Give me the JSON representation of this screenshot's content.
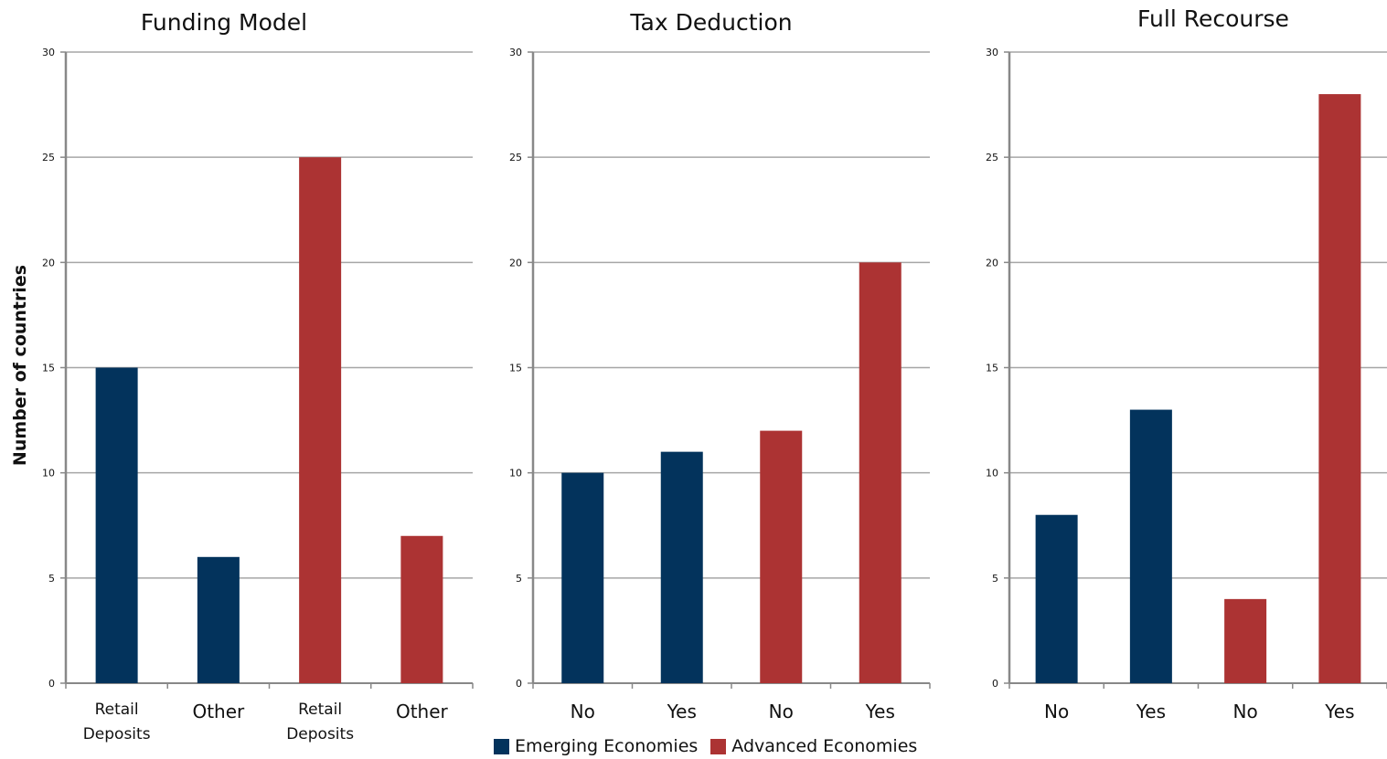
{
  "colors": {
    "emerging": "#03335c",
    "advanced": "#ac3333",
    "grid": "#a6a6a6",
    "axis": "#888888"
  },
  "legend": {
    "items": [
      {
        "label": "Emerging Economies",
        "color": "#03335c"
      },
      {
        "label": "Advanced Economies",
        "color": "#ac3333"
      }
    ],
    "placement": "bottom-center"
  },
  "ylabel": "Number of countries",
  "chart_data": [
    {
      "type": "bar",
      "title": "Funding Model",
      "categories": [
        "Retail Deposits",
        "Other",
        "Retail Deposits",
        "Other"
      ],
      "values": [
        15,
        6,
        25,
        7
      ],
      "groups": [
        "Emerging Economies",
        "Emerging Economies",
        "Advanced Economies",
        "Advanced Economies"
      ],
      "ylabel": "Number of countries",
      "ylim": [
        0,
        30
      ],
      "yticks": [
        0,
        5,
        10,
        15,
        20,
        25,
        30
      ],
      "grid": true
    },
    {
      "type": "bar",
      "title": "Tax Deduction",
      "categories": [
        "No",
        "Yes",
        "No",
        "Yes"
      ],
      "values": [
        10,
        11,
        12,
        20
      ],
      "groups": [
        "Emerging Economies",
        "Emerging Economies",
        "Advanced Economies",
        "Advanced Economies"
      ],
      "ylim": [
        0,
        30
      ],
      "yticks": [
        0,
        5,
        10,
        15,
        20,
        25,
        30
      ],
      "grid": true
    },
    {
      "type": "bar",
      "title": "Full Recourse",
      "categories": [
        "No",
        "Yes",
        "No",
        "Yes"
      ],
      "values": [
        8,
        13,
        4,
        28
      ],
      "groups": [
        "Emerging Economies",
        "Emerging Economies",
        "Advanced Economies",
        "Advanced Economies"
      ],
      "ylim": [
        0,
        30
      ],
      "yticks": [
        0,
        5,
        10,
        15,
        20,
        25,
        30
      ],
      "grid": true
    }
  ]
}
